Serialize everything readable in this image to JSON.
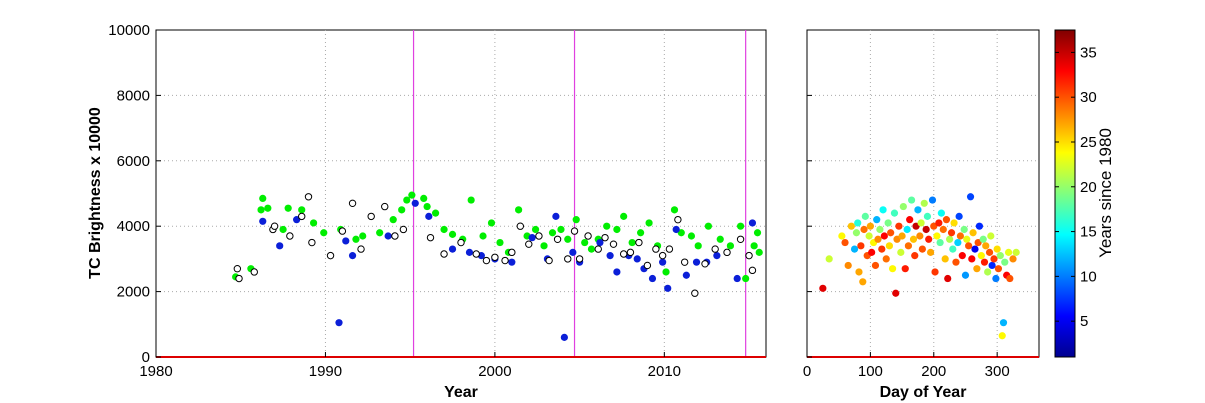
{
  "chart_data": [
    {
      "type": "scatter",
      "xlabel": "Year",
      "ylabel": "TC Brightness x 10000",
      "xlim": [
        1980,
        2016
      ],
      "ylim": [
        0,
        10000
      ],
      "xticks": [
        "1980",
        "1990",
        "2000",
        "2010"
      ],
      "yticks": [
        "0",
        "2000",
        "4000",
        "6000",
        "8000",
        "10000"
      ],
      "grid": true,
      "vertical_lines_x": [
        1995.2,
        2004.7,
        2014.8
      ],
      "vertical_line_color": "#e040e0",
      "baseline_color": "#dd0000",
      "series": [
        {
          "marker": "filled",
          "color": "#00ee00",
          "points": [
            [
              1984.7,
              2450
            ],
            [
              1985.6,
              2700
            ],
            [
              1986.2,
              4500
            ],
            [
              1986.3,
              4850
            ],
            [
              1986.6,
              4550
            ],
            [
              1987.5,
              3900
            ],
            [
              1987.8,
              4550
            ],
            [
              1988.6,
              4500
            ],
            [
              1989.3,
              4100
            ],
            [
              1989.9,
              3800
            ],
            [
              1990.9,
              3900
            ],
            [
              1991.8,
              3600
            ],
            [
              1992.2,
              3700
            ],
            [
              1993.2,
              3800
            ],
            [
              1994.0,
              4200
            ],
            [
              1994.5,
              4500
            ],
            [
              1994.8,
              4800
            ],
            [
              1995.1,
              4950
            ],
            [
              1995.8,
              4850
            ],
            [
              1996.0,
              4600
            ],
            [
              1996.5,
              4400
            ],
            [
              1997.0,
              3900
            ],
            [
              1997.5,
              3750
            ],
            [
              1998.1,
              3600
            ],
            [
              1998.6,
              4800
            ],
            [
              1999.3,
              3700
            ],
            [
              1999.8,
              4100
            ],
            [
              2000.3,
              3500
            ],
            [
              2000.8,
              3200
            ],
            [
              2001.4,
              4500
            ],
            [
              2001.9,
              3700
            ],
            [
              2002.4,
              3900
            ],
            [
              2002.9,
              3400
            ],
            [
              2003.4,
              3800
            ],
            [
              2003.9,
              3900
            ],
            [
              2004.3,
              3600
            ],
            [
              2004.8,
              4200
            ],
            [
              2005.3,
              3500
            ],
            [
              2005.7,
              3300
            ],
            [
              2006.1,
              3600
            ],
            [
              2006.6,
              4000
            ],
            [
              2007.2,
              3900
            ],
            [
              2007.6,
              4300
            ],
            [
              2008.1,
              3500
            ],
            [
              2008.6,
              3800
            ],
            [
              2009.1,
              4100
            ],
            [
              2009.6,
              3400
            ],
            [
              2010.1,
              2600
            ],
            [
              2010.6,
              4500
            ],
            [
              2011.0,
              3800
            ],
            [
              2011.6,
              3700
            ],
            [
              2012.0,
              3400
            ],
            [
              2012.6,
              4000
            ],
            [
              2013.3,
              3600
            ],
            [
              2013.9,
              3400
            ],
            [
              2014.5,
              4000
            ],
            [
              2014.8,
              2400
            ],
            [
              2015.3,
              3400
            ],
            [
              2015.5,
              3800
            ],
            [
              2015.6,
              3200
            ]
          ]
        },
        {
          "marker": "filled",
          "color": "#0b1fd8",
          "points": [
            [
              1986.3,
              4150
            ],
            [
              1987.3,
              3400
            ],
            [
              1988.3,
              4200
            ],
            [
              1990.8,
              1050
            ],
            [
              1991.2,
              3550
            ],
            [
              1991.6,
              3100
            ],
            [
              1993.7,
              3700
            ],
            [
              1995.3,
              4700
            ],
            [
              1996.1,
              4300
            ],
            [
              1997.5,
              3300
            ],
            [
              1998.5,
              3200
            ],
            [
              1999.2,
              3100
            ],
            [
              2000.0,
              3000
            ],
            [
              2001.0,
              2900
            ],
            [
              2002.2,
              3650
            ],
            [
              2003.1,
              3000
            ],
            [
              2003.6,
              4300
            ],
            [
              2004.1,
              600
            ],
            [
              2004.6,
              3200
            ],
            [
              2005.0,
              2900
            ],
            [
              2006.2,
              3500
            ],
            [
              2006.8,
              3100
            ],
            [
              2007.2,
              2600
            ],
            [
              2007.9,
              3100
            ],
            [
              2008.4,
              3000
            ],
            [
              2008.8,
              2700
            ],
            [
              2009.3,
              2400
            ],
            [
              2009.9,
              2900
            ],
            [
              2010.2,
              2100
            ],
            [
              2010.7,
              3900
            ],
            [
              2011.3,
              2500
            ],
            [
              2011.9,
              2900
            ],
            [
              2012.5,
              2900
            ],
            [
              2013.1,
              3100
            ],
            [
              2014.3,
              2400
            ],
            [
              2015.2,
              4100
            ]
          ]
        },
        {
          "marker": "open",
          "color": "#000000",
          "points": [
            [
              1984.8,
              2700
            ],
            [
              1984.9,
              2400
            ],
            [
              1985.8,
              2600
            ],
            [
              1986.9,
              3900
            ],
            [
              1987.0,
              4000
            ],
            [
              1987.9,
              3700
            ],
            [
              1988.6,
              4300
            ],
            [
              1989.0,
              4900
            ],
            [
              1989.2,
              3500
            ],
            [
              1990.3,
              3100
            ],
            [
              1991.0,
              3850
            ],
            [
              1991.6,
              4700
            ],
            [
              1992.1,
              3300
            ],
            [
              1992.7,
              4300
            ],
            [
              1993.5,
              4600
            ],
            [
              1994.1,
              3700
            ],
            [
              1994.6,
              3900
            ],
            [
              1996.2,
              3650
            ],
            [
              1997.0,
              3150
            ],
            [
              1998.0,
              3500
            ],
            [
              1998.9,
              3150
            ],
            [
              1999.5,
              2950
            ],
            [
              2000.0,
              3050
            ],
            [
              2000.6,
              2950
            ],
            [
              2001.0,
              3200
            ],
            [
              2001.5,
              4000
            ],
            [
              2002.0,
              3450
            ],
            [
              2002.6,
              3700
            ],
            [
              2003.2,
              2950
            ],
            [
              2003.7,
              3600
            ],
            [
              2004.3,
              3000
            ],
            [
              2004.7,
              3850
            ],
            [
              2005.0,
              3000
            ],
            [
              2005.5,
              3700
            ],
            [
              2006.1,
              3300
            ],
            [
              2006.5,
              3650
            ],
            [
              2007.0,
              3450
            ],
            [
              2007.6,
              3150
            ],
            [
              2008.0,
              3200
            ],
            [
              2008.5,
              3500
            ],
            [
              2009.0,
              2800
            ],
            [
              2009.5,
              3300
            ],
            [
              2009.9,
              3100
            ],
            [
              2010.3,
              3300
            ],
            [
              2010.8,
              4200
            ],
            [
              2011.2,
              2900
            ],
            [
              2011.8,
              1950
            ],
            [
              2012.4,
              2850
            ],
            [
              2013.0,
              3300
            ],
            [
              2013.7,
              3200
            ],
            [
              2014.5,
              3600
            ],
            [
              2015.0,
              3100
            ],
            [
              2015.2,
              2650
            ]
          ]
        }
      ]
    },
    {
      "type": "scatter",
      "xlabel": "Day of Year",
      "xlim": [
        0,
        366
      ],
      "ylim": [
        0,
        10000
      ],
      "xticks": [
        "0",
        "100",
        "200",
        "300"
      ],
      "grid": true,
      "baseline_color": "#dd0000",
      "colorbar": {
        "label": "Years since 1980",
        "min": 1,
        "max": 37.5,
        "ticks": [
          "5",
          "10",
          "15",
          "20",
          "25",
          "30",
          "35"
        ],
        "colormap": "jet"
      },
      "points": [
        [
          25,
          2100,
          34
        ],
        [
          35,
          3000,
          22
        ],
        [
          55,
          3700,
          24
        ],
        [
          60,
          3500,
          30
        ],
        [
          65,
          2800,
          28
        ],
        [
          70,
          4000,
          26
        ],
        [
          75,
          3300,
          12
        ],
        [
          78,
          3800,
          20
        ],
        [
          80,
          4100,
          16
        ],
        [
          82,
          2600,
          27
        ],
        [
          85,
          3400,
          31
        ],
        [
          88,
          2300,
          27
        ],
        [
          90,
          3900,
          29
        ],
        [
          92,
          4300,
          18
        ],
        [
          95,
          3100,
          30
        ],
        [
          98,
          3700,
          22
        ],
        [
          100,
          4000,
          27
        ],
        [
          102,
          3200,
          33
        ],
        [
          105,
          3500,
          24
        ],
        [
          108,
          2800,
          30
        ],
        [
          110,
          4200,
          12
        ],
        [
          112,
          3600,
          28
        ],
        [
          115,
          3900,
          20
        ],
        [
          118,
          3300,
          31
        ],
        [
          120,
          4500,
          15
        ],
        [
          122,
          3700,
          33
        ],
        [
          125,
          3000,
          29
        ],
        [
          128,
          4100,
          19
        ],
        [
          130,
          3400,
          25
        ],
        [
          132,
          3800,
          30
        ],
        [
          135,
          2700,
          24
        ],
        [
          138,
          4400,
          17
        ],
        [
          140,
          1950,
          34
        ],
        [
          142,
          3600,
          28
        ],
        [
          145,
          4000,
          31
        ],
        [
          148,
          3200,
          22
        ],
        [
          150,
          3700,
          27
        ],
        [
          152,
          4600,
          20
        ],
        [
          155,
          2700,
          32
        ],
        [
          158,
          3900,
          14
        ],
        [
          160,
          3400,
          29
        ],
        [
          162,
          4200,
          33
        ],
        [
          165,
          4800,
          18
        ],
        [
          168,
          3600,
          26
        ],
        [
          170,
          3100,
          31
        ],
        [
          172,
          4000,
          35
        ],
        [
          175,
          4500,
          12
        ],
        [
          178,
          3700,
          28
        ],
        [
          180,
          4100,
          22
        ],
        [
          182,
          3300,
          30
        ],
        [
          185,
          4700,
          21
        ],
        [
          188,
          3900,
          35
        ],
        [
          190,
          4300,
          17
        ],
        [
          192,
          3600,
          32
        ],
        [
          195,
          3200,
          27
        ],
        [
          198,
          4800,
          10
        ],
        [
          200,
          4000,
          30
        ],
        [
          202,
          2600,
          31
        ],
        [
          205,
          3700,
          24
        ],
        [
          208,
          4100,
          32
        ],
        [
          210,
          3500,
          18
        ],
        [
          212,
          4400,
          15
        ],
        [
          215,
          3900,
          29
        ],
        [
          218,
          3000,
          26
        ],
        [
          220,
          4200,
          30
        ],
        [
          222,
          2400,
          34
        ],
        [
          225,
          3600,
          21
        ],
        [
          228,
          3800,
          31
        ],
        [
          230,
          3300,
          17
        ],
        [
          232,
          4100,
          25
        ],
        [
          235,
          2900,
          30
        ],
        [
          238,
          3500,
          13
        ],
        [
          240,
          4300,
          8
        ],
        [
          242,
          3700,
          29
        ],
        [
          245,
          3100,
          33
        ],
        [
          248,
          3900,
          19
        ],
        [
          250,
          2500,
          11
        ],
        [
          252,
          3600,
          23
        ],
        [
          255,
          3400,
          30
        ],
        [
          258,
          4900,
          8
        ],
        [
          260,
          3000,
          33
        ],
        [
          262,
          3800,
          26
        ],
        [
          265,
          3300,
          5
        ],
        [
          268,
          2700,
          27
        ],
        [
          270,
          3500,
          30
        ],
        [
          272,
          4000,
          7
        ],
        [
          275,
          3100,
          24
        ],
        [
          278,
          3600,
          19
        ],
        [
          280,
          2900,
          32
        ],
        [
          282,
          3400,
          27
        ],
        [
          285,
          2600,
          21
        ],
        [
          288,
          3200,
          30
        ],
        [
          290,
          3700,
          22
        ],
        [
          292,
          2800,
          7
        ],
        [
          295,
          3000,
          31
        ],
        [
          298,
          2400,
          10
        ],
        [
          300,
          3300,
          25
        ],
        [
          302,
          2700,
          30
        ],
        [
          305,
          3100,
          20
        ],
        [
          308,
          650,
          24
        ],
        [
          310,
          1050,
          12
        ],
        [
          312,
          2900,
          19
        ],
        [
          315,
          2500,
          33
        ],
        [
          318,
          3200,
          23
        ],
        [
          320,
          2400,
          30
        ],
        [
          325,
          3000,
          28
        ],
        [
          330,
          3200,
          22
        ]
      ]
    }
  ]
}
